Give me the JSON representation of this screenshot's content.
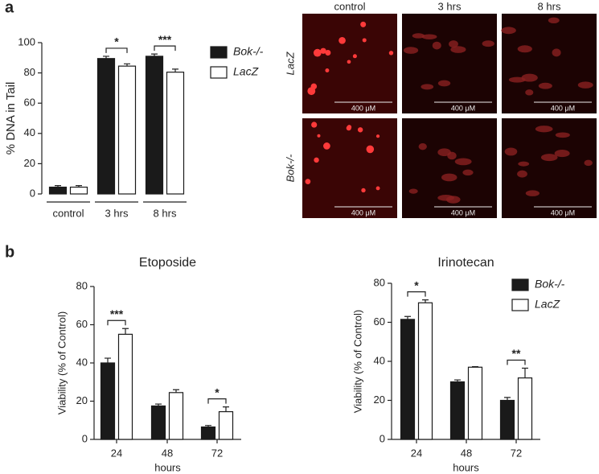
{
  "panel_labels": [
    "a",
    "b"
  ],
  "micrographs": {
    "columns": [
      "control",
      "3 hrs",
      "8 hrs"
    ],
    "rows": [
      "LacZ",
      "Bok-/-"
    ],
    "scale_bar": "400 μM"
  },
  "chart_data": [
    {
      "type": "bar",
      "ylabel": "% DNA in Tail",
      "categories": [
        "control",
        "3 hrs",
        "8 hrs"
      ],
      "series": [
        {
          "name": "Bok-/-",
          "color": "#1a1a1a",
          "values": [
            4.5,
            89.5,
            91
          ],
          "errors": [
            1,
            1.5,
            1.5
          ]
        },
        {
          "name": "LacZ",
          "color": "#ffffff",
          "values": [
            4.5,
            84.5,
            80.5
          ],
          "errors": [
            1,
            1.5,
            2
          ]
        }
      ],
      "ylim": [
        0,
        100
      ],
      "yticks": [
        0,
        20,
        40,
        60,
        80,
        100
      ],
      "legend": true,
      "annotations": [
        {
          "text": "*",
          "category": "3 hrs"
        },
        {
          "text": "***",
          "category": "8 hrs"
        }
      ]
    },
    {
      "type": "bar",
      "title": "Etoposide",
      "xlabel": "hours",
      "ylabel": "Viability (% of Control)",
      "categories": [
        "24",
        "48",
        "72"
      ],
      "series": [
        {
          "name": "Bok-/-",
          "color": "#1a1a1a",
          "values": [
            40,
            17.5,
            6.5
          ],
          "errors": [
            2.5,
            1,
            0.8
          ]
        },
        {
          "name": "LacZ",
          "color": "#ffffff",
          "values": [
            55,
            24.5,
            14.5
          ],
          "errors": [
            3,
            1.5,
            2.5
          ]
        }
      ],
      "ylim": [
        0,
        80
      ],
      "yticks": [
        0,
        20,
        40,
        60,
        80
      ],
      "legend": false,
      "annotations": [
        {
          "text": "***",
          "category": "24"
        },
        {
          "text": "*",
          "category": "72"
        }
      ]
    },
    {
      "type": "bar",
      "title": "Irinotecan",
      "xlabel": "hours",
      "ylabel": "Viability (% of Control)",
      "categories": [
        "24",
        "48",
        "72"
      ],
      "series": [
        {
          "name": "Bok-/-",
          "color": "#1a1a1a",
          "values": [
            61.5,
            29.5,
            20
          ],
          "errors": [
            1.5,
            1,
            1.5
          ]
        },
        {
          "name": "LacZ",
          "color": "#ffffff",
          "values": [
            70,
            37,
            31.5
          ],
          "errors": [
            1.5,
            0.3,
            5
          ]
        }
      ],
      "ylim": [
        0,
        80
      ],
      "yticks": [
        0,
        20,
        40,
        60,
        80
      ],
      "legend": true,
      "annotations": [
        {
          "text": "*",
          "category": "24"
        },
        {
          "text": "**",
          "category": "72"
        }
      ]
    }
  ]
}
